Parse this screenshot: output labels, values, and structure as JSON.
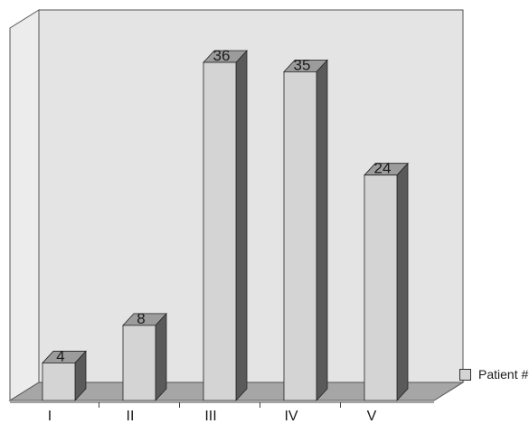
{
  "chart_data": {
    "type": "bar",
    "categories": [
      "I",
      "II",
      "III",
      "IV",
      "V"
    ],
    "series": [
      {
        "name": "Patient #",
        "values": [
          4,
          8,
          36,
          35,
          24
        ]
      }
    ],
    "data_labels": [
      "4",
      "8",
      "36",
      "35",
      "24"
    ],
    "title": "",
    "xlabel": "",
    "ylabel": "",
    "ylim": [
      0,
      36
    ],
    "grid": false,
    "style": "3d-column",
    "legend_position": "right",
    "colors": {
      "bar_front": "#d4d4d4",
      "bar_side": "#5a5a5a",
      "bar_top": "#9c9c9c",
      "back_wall": "#e4e4e4",
      "side_wall": "#ececec",
      "floor": "#a6a6a6"
    }
  },
  "legend": {
    "label": "Patient #"
  }
}
